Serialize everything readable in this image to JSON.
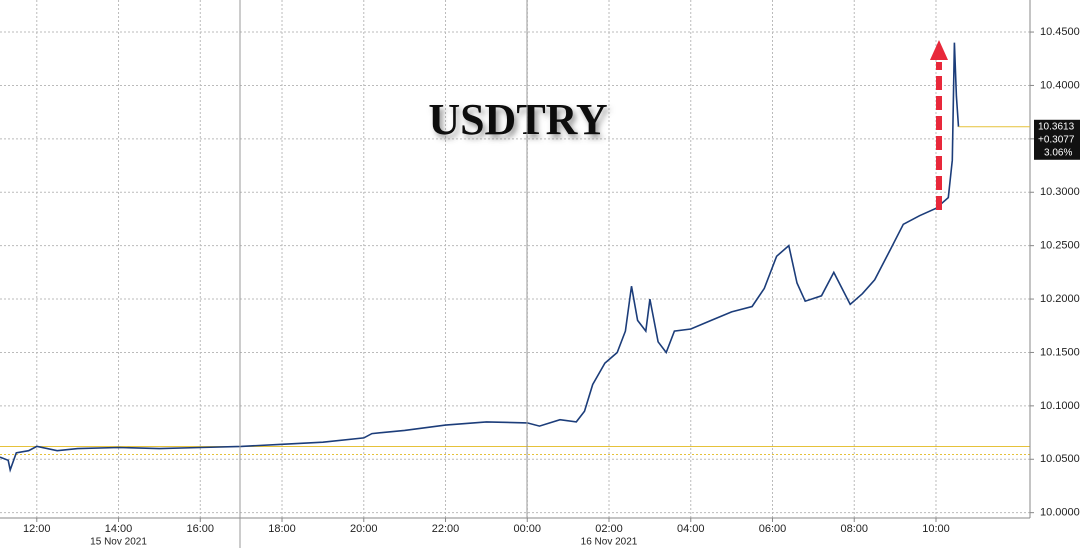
{
  "chart_data": {
    "type": "line",
    "title": "USDTRY",
    "x": [
      11.1,
      11.3,
      11.35,
      11.5,
      11.8,
      12,
      12.5,
      13,
      14,
      15,
      16,
      17,
      18,
      19,
      20,
      20.2,
      21,
      22,
      23,
      24,
      24.3,
      24.8,
      25.2,
      25.4,
      25.6,
      25.9,
      26.2,
      26.4,
      26.55,
      26.7,
      26.9,
      27.0,
      27.2,
      27.4,
      27.6,
      28,
      28.5,
      29,
      29.5,
      29.8,
      30.1,
      30.4,
      30.6,
      30.8,
      31.2,
      31.5,
      31.7,
      31.9,
      32.2,
      32.5,
      32.8,
      33.2,
      33.6,
      34,
      34.3,
      34.4,
      34.45,
      34.5,
      34.55
    ],
    "series": [
      {
        "color": "#1c3d7a",
        "values": [
          10.052,
          10.049,
          10.04,
          10.056,
          10.058,
          10.062,
          10.058,
          10.06,
          10.061,
          10.06,
          10.061,
          10.062,
          10.064,
          10.066,
          10.07,
          10.074,
          10.077,
          10.082,
          10.085,
          10.084,
          10.081,
          10.087,
          10.085,
          10.095,
          10.12,
          10.14,
          10.15,
          10.17,
          10.212,
          10.18,
          10.17,
          10.2,
          10.16,
          10.15,
          10.17,
          10.172,
          10.18,
          10.188,
          10.193,
          10.21,
          10.24,
          10.25,
          10.215,
          10.198,
          10.203,
          10.225,
          10.21,
          10.195,
          10.205,
          10.218,
          10.24,
          10.27,
          10.278,
          10.285,
          10.295,
          10.33,
          10.44,
          10.39,
          10.3613
        ]
      }
    ],
    "xlim": [
      11.1,
      36.3
    ],
    "xticks": [
      {
        "value": 12,
        "label": "12:00"
      },
      {
        "value": 14,
        "label": "14:00"
      },
      {
        "value": 16,
        "label": "16:00"
      },
      {
        "value": 18,
        "label": "18:00"
      },
      {
        "value": 20,
        "label": "20:00"
      },
      {
        "value": 22,
        "label": "22:00"
      },
      {
        "value": 24,
        "label": "00:00"
      },
      {
        "value": 26,
        "label": "02:00"
      },
      {
        "value": 28,
        "label": "04:00"
      },
      {
        "value": 30,
        "label": "06:00"
      },
      {
        "value": 32,
        "label": "08:00"
      },
      {
        "value": 34,
        "label": "10:00"
      }
    ],
    "date_labels": [
      {
        "value": 14,
        "label": "15 Nov 2021"
      },
      {
        "value": 26,
        "label": "16 Nov 2021"
      }
    ],
    "ylim": [
      9.995,
      10.48
    ],
    "yticks": [
      {
        "value": 10.0,
        "label": "10.0000"
      },
      {
        "value": 10.05,
        "label": "10.0500"
      },
      {
        "value": 10.1,
        "label": "10.1000"
      },
      {
        "value": 10.15,
        "label": "10.1500"
      },
      {
        "value": 10.2,
        "label": "10.2000"
      },
      {
        "value": 10.25,
        "label": "10.2500"
      },
      {
        "value": 10.3,
        "label": "10.3000"
      },
      {
        "value": 10.35,
        "label": "10.3500"
      },
      {
        "value": 10.4,
        "label": "10.4000"
      },
      {
        "value": 10.45,
        "label": "10.4500"
      }
    ],
    "last_value": 10.3613,
    "change": "+0.3077",
    "change_pct": "3.06%",
    "reference_lines": [
      10.062,
      10.0545
    ],
    "grid": true
  }
}
